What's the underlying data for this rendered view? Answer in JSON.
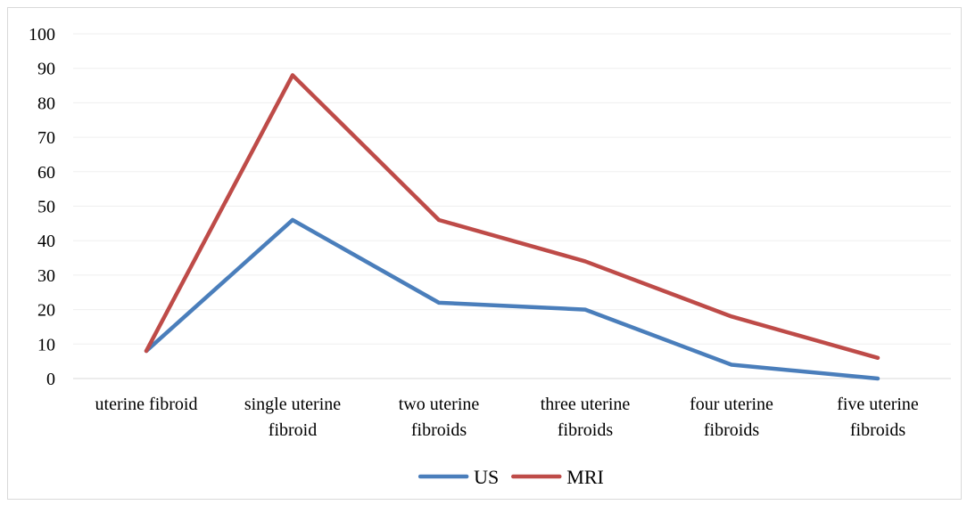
{
  "chart_data": {
    "type": "line",
    "title": "",
    "xlabel": "",
    "ylabel": "",
    "ylim": [
      0,
      100
    ],
    "yticks": [
      "0",
      "10",
      "20",
      "30",
      "40",
      "50",
      "60",
      "70",
      "80",
      "90",
      "100"
    ],
    "categories": [
      [
        "uterine fibroid"
      ],
      [
        "single uterine",
        "fibroid"
      ],
      [
        "two uterine",
        "fibroids"
      ],
      [
        "three uterine",
        "fibroids"
      ],
      [
        "four uterine",
        "fibroids"
      ],
      [
        "five uterine",
        "fibroids"
      ]
    ],
    "series": [
      {
        "name": "US",
        "color": "#4a7ebb",
        "values": [
          8,
          46,
          22,
          20,
          4,
          0
        ]
      },
      {
        "name": "MRI",
        "color": "#be4b48",
        "values": [
          8,
          88,
          46,
          34,
          18,
          6
        ]
      }
    ],
    "grid": true,
    "legend": "bottom-center",
    "gridColor": "#efefef",
    "axisColor": "#d9d9d9"
  }
}
